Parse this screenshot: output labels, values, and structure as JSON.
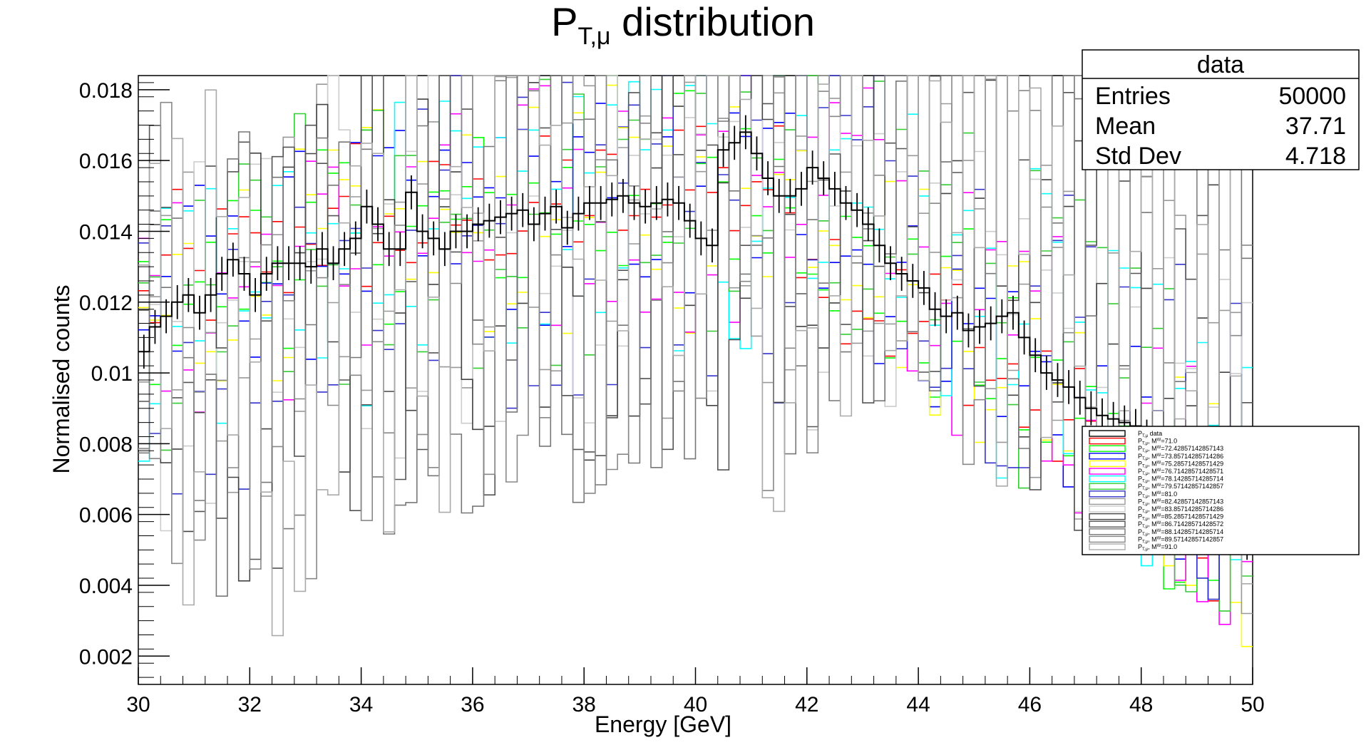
{
  "chart_data": {
    "type": "step-histogram",
    "title_main": "P",
    "title_sub": "T,μ",
    "title_rest": " distribution",
    "xlabel": "Energy [GeV]",
    "ylabel": "Normalised counts",
    "xlim": [
      30,
      50
    ],
    "ylim": [
      0.0012,
      0.0184
    ],
    "x_ticks": [
      30,
      32,
      34,
      36,
      38,
      40,
      42,
      44,
      46,
      48,
      50
    ],
    "x_tick_labels": [
      "30",
      "32",
      "34",
      "36",
      "38",
      "40",
      "42",
      "44",
      "46",
      "48",
      "50"
    ],
    "y_ticks": [
      0.002,
      0.004,
      0.006,
      0.008,
      0.01,
      0.012,
      0.014,
      0.016,
      0.018
    ],
    "y_tick_labels": [
      "0.002",
      "0.004",
      "0.006",
      "0.008",
      "0.01",
      "0.012",
      "0.014",
      "0.016",
      "0.018"
    ],
    "grid": false,
    "stats_box": {
      "title": "data",
      "rows": [
        {
          "label": "Entries",
          "value": "50000"
        },
        {
          "label": "Mean",
          "value": "37.71"
        },
        {
          "label": "Std Dev",
          "value": "4.718"
        }
      ],
      "placement": "top-right"
    },
    "legend_placement": "right",
    "legend": [
      {
        "name": "P",
        "sub": "T,μ",
        "rest": " data",
        "color": "#000000"
      },
      {
        "name": "P",
        "sub": "T,μ",
        "rest": ", M",
        "sub2": "W",
        "rest2": "=71.0",
        "color": "#ff0000"
      },
      {
        "name": "P",
        "sub": "T,μ",
        "rest": ", M",
        "sub2": "W",
        "rest2": "=72.42857142857143",
        "color": "#00ff00"
      },
      {
        "name": "P",
        "sub": "T,μ",
        "rest": ", M",
        "sub2": "W",
        "rest2": "=73.85714285714286",
        "color": "#0000ff"
      },
      {
        "name": "P",
        "sub": "T,μ",
        "rest": ", M",
        "sub2": "W",
        "rest2": "=75.28571428571429",
        "color": "#ffff00"
      },
      {
        "name": "P",
        "sub": "T,μ",
        "rest": ", M",
        "sub2": "W",
        "rest2": "=76.71428571428571",
        "color": "#ff00ff"
      },
      {
        "name": "P",
        "sub": "T,μ",
        "rest": ", M",
        "sub2": "W",
        "rest2": "=78.14285714285714",
        "color": "#00ffff"
      },
      {
        "name": "P",
        "sub": "T,μ",
        "rest": ", M",
        "sub2": "W",
        "rest2": "=79.57142857142857",
        "color": "#33cc33"
      },
      {
        "name": "P",
        "sub": "T,μ",
        "rest": ", M",
        "sub2": "W",
        "rest2": "=81.0",
        "color": "#3333cc"
      },
      {
        "name": "P",
        "sub": "T,μ",
        "rest": ", M",
        "sub2": "W",
        "rest2": "=82.42857142857143",
        "color": "#999999"
      },
      {
        "name": "P",
        "sub": "T,μ",
        "rest": ", M",
        "sub2": "W",
        "rest2": "=83.85714285714286",
        "color": "#cccccc"
      },
      {
        "name": "P",
        "sub": "T,μ",
        "rest": ", M",
        "sub2": "W",
        "rest2": "=85.28571428571429",
        "color": "#444444"
      },
      {
        "name": "P",
        "sub": "T,μ",
        "rest": ", M",
        "sub2": "W",
        "rest2": "=86.71428571428572",
        "color": "#555555"
      },
      {
        "name": "P",
        "sub": "T,μ",
        "rest": ", M",
        "sub2": "W",
        "rest2": "=88.14285714285714",
        "color": "#777777"
      },
      {
        "name": "P",
        "sub": "T,μ",
        "rest": ", M",
        "sub2": "W",
        "rest2": "=89.57142857142857",
        "color": "#888888"
      },
      {
        "name": "P",
        "sub": "T,μ",
        "rest": ", M",
        "sub2": "W",
        "rest2": "=91.0",
        "color": "#aaaaaa"
      }
    ],
    "bin_edges_start": 30,
    "bin_width": 0.2,
    "data_series": {
      "name": "P_T,μ data",
      "color": "#000000",
      "values": [
        0.0106,
        0.0113,
        0.0116,
        0.012,
        0.0122,
        0.0117,
        0.0122,
        0.0128,
        0.0132,
        0.0128,
        0.0122,
        0.0128,
        0.0131,
        0.0131,
        0.0131,
        0.013,
        0.0135,
        0.0131,
        0.0135,
        0.0138,
        0.0147,
        0.0142,
        0.0135,
        0.0135,
        0.0151,
        0.014,
        0.0138,
        0.0135,
        0.014,
        0.014,
        0.0142,
        0.0143,
        0.0144,
        0.0145,
        0.0146,
        0.0142,
        0.0145,
        0.0147,
        0.0141,
        0.0145,
        0.0148,
        0.0148,
        0.0149,
        0.015,
        0.0148,
        0.0147,
        0.0148,
        0.0149,
        0.0148,
        0.0143,
        0.0138,
        0.0136,
        0.0163,
        0.0165,
        0.0168,
        0.0162,
        0.0155,
        0.015,
        0.015,
        0.0152,
        0.0158,
        0.0155,
        0.0152,
        0.0148,
        0.0146,
        0.0142,
        0.0136,
        0.0131,
        0.0128,
        0.0126,
        0.0124,
        0.0118,
        0.0116,
        0.0117,
        0.0112,
        0.0113,
        0.0114,
        0.0116,
        0.0117,
        0.011,
        0.0105,
        0.01,
        0.0098,
        0.0096,
        0.0093,
        0.009,
        0.0088,
        0.0087,
        0.0086,
        0.0085,
        0.0082,
        0.0079,
        0.0076,
        0.0072,
        0.0068,
        0.0065,
        0.0062,
        0.0059,
        0.0056,
        0.0052,
        0.0048
      ]
    }
  }
}
